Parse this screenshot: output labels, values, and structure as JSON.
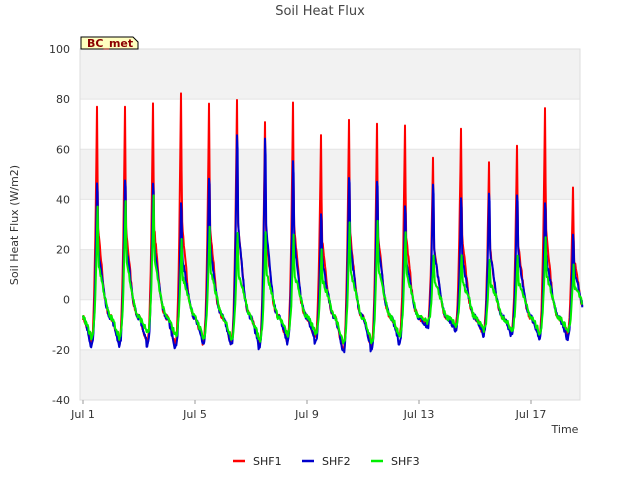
{
  "chart_data": {
    "type": "line",
    "title": "Soil Heat Flux",
    "xlabel": "Time",
    "ylabel": "Soil Heat Flux (W/m2)",
    "site_label": "BC_met",
    "xlim": [
      "Jul 1",
      "Jul 19"
    ],
    "ylim": [
      -40,
      100
    ],
    "y_ticks": [
      -40,
      -20,
      0,
      20,
      40,
      60,
      80,
      100
    ],
    "x_ticks": [
      "Jul 1",
      "Jul 5",
      "Jul 9",
      "Jul 13",
      "Jul 17"
    ],
    "grid": "alternating horizontal bands",
    "legend_position": "bottom-center",
    "days": [
      "Jul 1",
      "Jul 2",
      "Jul 3",
      "Jul 4",
      "Jul 5",
      "Jul 6",
      "Jul 7",
      "Jul 8",
      "Jul 9",
      "Jul 10",
      "Jul 11",
      "Jul 12",
      "Jul 13",
      "Jul 14",
      "Jul 15",
      "Jul 16",
      "Jul 17",
      "Jul 18"
    ],
    "series": [
      {
        "name": "SHF1",
        "color": "#ff0000",
        "daily_peak": [
          76,
          76,
          78,
          82,
          78,
          80,
          70,
          78,
          65,
          71,
          70,
          69,
          57,
          69,
          54,
          61,
          76,
          44
        ],
        "daily_min": [
          -17,
          -17,
          -17,
          -18,
          -17,
          -17,
          -18,
          -16,
          -15,
          -20,
          -19,
          -15,
          -10,
          -11,
          -13,
          -13,
          -14,
          -13
        ]
      },
      {
        "name": "SHF2",
        "color": "#0000cc",
        "daily_peak": [
          53,
          56,
          55,
          45,
          57,
          76,
          73,
          63,
          40,
          58,
          56,
          43,
          52,
          46,
          49,
          48,
          44,
          30
        ],
        "daily_min": [
          -18,
          -18,
          -18,
          -19,
          -18,
          -18,
          -19,
          -17,
          -17,
          -21,
          -20,
          -17,
          -11,
          -12,
          -14,
          -14,
          -15,
          -15
        ]
      },
      {
        "name": "SHF3",
        "color": "#00ee00",
        "daily_peak": [
          38,
          41,
          42,
          24,
          30,
          28,
          28,
          26,
          20,
          31,
          33,
          28,
          18,
          18,
          16,
          18,
          26,
          14
        ],
        "daily_min": [
          -15,
          -15,
          -13,
          -14,
          -15,
          -15,
          -16,
          -14,
          -13,
          -17,
          -17,
          -14,
          -9,
          -10,
          -12,
          -12,
          -13,
          -12
        ]
      }
    ]
  }
}
